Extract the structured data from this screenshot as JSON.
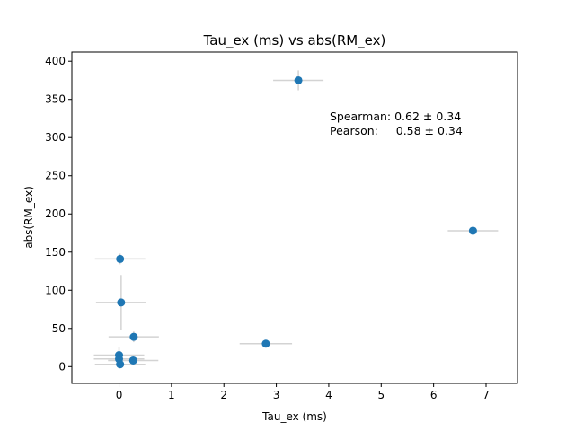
{
  "chart_data": {
    "type": "scatter",
    "title": "Tau_ex (ms) vs abs(RM_ex)",
    "xlabel": "Tau_ex (ms)",
    "ylabel": "abs(RM_ex)",
    "xlim": [
      -0.9,
      7.6
    ],
    "ylim": [
      -22,
      412
    ],
    "xticks": [
      0,
      1,
      2,
      3,
      4,
      5,
      6,
      7
    ],
    "yticks": [
      0,
      50,
      100,
      150,
      200,
      250,
      300,
      350,
      400
    ],
    "grid": false,
    "colors": {
      "marker": "#1f77b4",
      "errorbar": "#d3d3d3"
    },
    "points": [
      {
        "x": 3.42,
        "y": 375,
        "xerr": 0.48,
        "yerr": 13
      },
      {
        "x": 6.75,
        "y": 178,
        "xerr": 0.48,
        "yerr": 5
      },
      {
        "x": 0.02,
        "y": 141,
        "xerr": 0.48,
        "yerr": 7
      },
      {
        "x": 0.04,
        "y": 84,
        "xerr": 0.48,
        "yerr": 36
      },
      {
        "x": 0.28,
        "y": 39,
        "xerr": 0.48,
        "yerr": 7
      },
      {
        "x": 2.8,
        "y": 30,
        "xerr": 0.5,
        "yerr": 3
      },
      {
        "x": 0.0,
        "y": 15,
        "xerr": 0.48,
        "yerr": 10
      },
      {
        "x": 0.0,
        "y": 10,
        "xerr": 0.48,
        "yerr": 4
      },
      {
        "x": 0.27,
        "y": 8,
        "xerr": 0.48,
        "yerr": 3
      },
      {
        "x": 0.02,
        "y": 3,
        "xerr": 0.48,
        "yerr": 2
      }
    ],
    "annotations": {
      "spearman": "Spearman: 0.62 ± 0.34",
      "pearson": "Pearson:     0.58 ± 0.34"
    }
  }
}
